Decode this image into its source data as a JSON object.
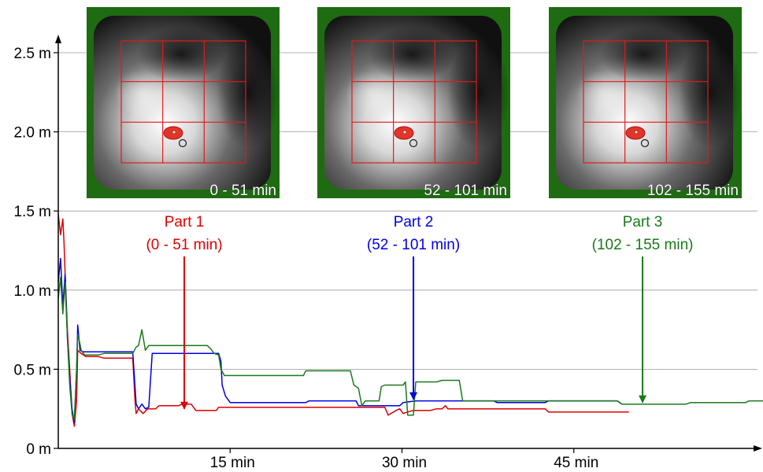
{
  "colors": {
    "part1": "#dd0000",
    "part2": "#0000e6",
    "part3": "#1a7a1a",
    "gridline": "#9a9a9a",
    "map_border": "#1e6b12",
    "map_grid": "#e01b1b"
  },
  "chart_data": {
    "type": "line",
    "x_unit": "min",
    "y_unit": "m",
    "xlim": [
      0,
      68
    ],
    "ylim": [
      0,
      2.7
    ],
    "x_ticks": [
      {
        "value": 15,
        "label": "15 min"
      },
      {
        "value": 30,
        "label": "30 min"
      },
      {
        "value": 45,
        "label": "45 min"
      }
    ],
    "y_ticks": [
      {
        "value": 0,
        "label": "0 m"
      },
      {
        "value": 0.5,
        "label": "0.5 m"
      },
      {
        "value": 1.0,
        "label": "1.0 m"
      },
      {
        "value": 1.5,
        "label": "1.5 m"
      },
      {
        "value": 2.0,
        "label": "2.0 m"
      },
      {
        "value": 2.5,
        "label": "2.5 m"
      }
    ],
    "gridlines_y": [
      0.5,
      1.0,
      1.5,
      2.0,
      2.5
    ],
    "series": [
      {
        "id": "part1",
        "color_key": "part1",
        "points": [
          [
            0,
            1.48
          ],
          [
            0.2,
            1.35
          ],
          [
            0.4,
            1.45
          ],
          [
            0.5,
            1.3
          ],
          [
            0.6,
            1.1
          ],
          [
            0.8,
            0.75
          ],
          [
            1.0,
            0.5
          ],
          [
            1.2,
            0.22
          ],
          [
            1.4,
            0.14
          ],
          [
            1.6,
            0.3
          ],
          [
            1.7,
            0.62
          ],
          [
            2.0,
            0.6
          ],
          [
            2.4,
            0.58
          ],
          [
            3.5,
            0.58
          ],
          [
            4.0,
            0.57
          ],
          [
            6.0,
            0.57
          ],
          [
            6.5,
            0.57
          ],
          [
            6.7,
            0.3
          ],
          [
            6.8,
            0.22
          ],
          [
            7.0,
            0.25
          ],
          [
            7.4,
            0.22
          ],
          [
            7.8,
            0.25
          ],
          [
            8.5,
            0.25
          ],
          [
            8.8,
            0.27
          ],
          [
            10.5,
            0.27
          ],
          [
            10.8,
            0.28
          ],
          [
            11.6,
            0.28
          ],
          [
            12.0,
            0.24
          ],
          [
            13.8,
            0.24
          ],
          [
            14.0,
            0.26
          ],
          [
            28.5,
            0.26
          ],
          [
            28.8,
            0.21
          ],
          [
            29.5,
            0.24
          ],
          [
            29.8,
            0.25
          ],
          [
            30.1,
            0.22
          ],
          [
            30.5,
            0.23
          ],
          [
            31.0,
            0.24
          ],
          [
            31.5,
            0.24
          ],
          [
            32.5,
            0.24
          ],
          [
            33.0,
            0.25
          ],
          [
            33.5,
            0.25
          ],
          [
            33.8,
            0.27
          ],
          [
            34.0,
            0.25
          ],
          [
            42.5,
            0.25
          ],
          [
            42.8,
            0.23
          ],
          [
            49.8,
            0.23
          ]
        ]
      },
      {
        "id": "part2",
        "color_key": "part2",
        "points": [
          [
            0,
            1.05
          ],
          [
            0.2,
            1.2
          ],
          [
            0.4,
            0.9
          ],
          [
            0.6,
            1.1
          ],
          [
            0.8,
            0.7
          ],
          [
            1.0,
            0.45
          ],
          [
            1.2,
            0.25
          ],
          [
            1.4,
            0.16
          ],
          [
            1.6,
            0.5
          ],
          [
            1.7,
            0.78
          ],
          [
            1.9,
            0.62
          ],
          [
            2.2,
            0.61
          ],
          [
            2.5,
            0.61
          ],
          [
            6.5,
            0.61
          ],
          [
            6.8,
            0.28
          ],
          [
            7.0,
            0.25
          ],
          [
            7.3,
            0.28
          ],
          [
            7.6,
            0.25
          ],
          [
            7.9,
            0.26
          ],
          [
            8.2,
            0.6
          ],
          [
            14.0,
            0.6
          ],
          [
            14.2,
            0.55
          ],
          [
            14.3,
            0.4
          ],
          [
            14.6,
            0.33
          ],
          [
            15.0,
            0.29
          ],
          [
            21.6,
            0.29
          ],
          [
            21.9,
            0.3
          ],
          [
            26.0,
            0.3
          ],
          [
            26.2,
            0.27
          ],
          [
            29.8,
            0.27
          ],
          [
            30.1,
            0.29
          ],
          [
            31.2,
            0.3
          ],
          [
            38.0,
            0.3
          ],
          [
            38.3,
            0.29
          ],
          [
            42.5,
            0.29
          ],
          [
            42.8,
            0.3
          ],
          [
            48.8,
            0.3
          ],
          [
            49.2,
            0.28
          ]
        ]
      },
      {
        "id": "part3",
        "color_key": "part3",
        "points": [
          [
            0,
            0.95
          ],
          [
            0.2,
            1.08
          ],
          [
            0.4,
            0.85
          ],
          [
            0.6,
            1.05
          ],
          [
            0.8,
            0.7
          ],
          [
            1.0,
            0.4
          ],
          [
            1.2,
            0.22
          ],
          [
            1.4,
            0.18
          ],
          [
            1.6,
            0.5
          ],
          [
            1.7,
            0.72
          ],
          [
            1.9,
            0.66
          ],
          [
            2.0,
            0.62
          ],
          [
            2.3,
            0.59
          ],
          [
            3.5,
            0.59
          ],
          [
            4.0,
            0.6
          ],
          [
            6.5,
            0.6
          ],
          [
            6.8,
            0.64
          ],
          [
            7.0,
            0.65
          ],
          [
            7.3,
            0.75
          ],
          [
            7.6,
            0.62
          ],
          [
            7.9,
            0.65
          ],
          [
            13.0,
            0.65
          ],
          [
            13.3,
            0.63
          ],
          [
            13.6,
            0.6
          ],
          [
            14.0,
            0.59
          ],
          [
            14.2,
            0.5
          ],
          [
            14.5,
            0.46
          ],
          [
            21.4,
            0.46
          ],
          [
            21.6,
            0.49
          ],
          [
            25.5,
            0.49
          ],
          [
            25.8,
            0.4
          ],
          [
            26.2,
            0.38
          ],
          [
            26.5,
            0.27
          ],
          [
            26.8,
            0.3
          ],
          [
            28.0,
            0.3
          ],
          [
            28.2,
            0.39
          ],
          [
            28.5,
            0.4
          ],
          [
            30.1,
            0.4
          ],
          [
            30.3,
            0.42
          ],
          [
            30.5,
            0.21
          ],
          [
            31.0,
            0.21
          ],
          [
            31.2,
            0.42
          ],
          [
            33.0,
            0.42
          ],
          [
            33.5,
            0.43
          ],
          [
            35.0,
            0.43
          ],
          [
            35.3,
            0.3
          ],
          [
            48.8,
            0.3
          ],
          [
            49.2,
            0.28
          ],
          [
            54.8,
            0.28
          ],
          [
            55.2,
            0.29
          ],
          [
            60.0,
            0.29
          ],
          [
            60.3,
            0.3
          ],
          [
            64.8,
            0.3
          ]
        ]
      }
    ],
    "annotations": [
      {
        "id": "part1",
        "color_key": "part1",
        "line1": "Part 1",
        "line2": "(0 - 51 min)",
        "arrow_x": 11.0,
        "arrow_y": 0.24
      },
      {
        "id": "part2",
        "color_key": "part2",
        "line1": "Part 2",
        "line2": "(52 - 101 min)",
        "arrow_x": 31.0,
        "arrow_y": 0.3
      },
      {
        "id": "part3",
        "color_key": "part3",
        "line1": "Part 3",
        "line2": "(102 - 155 min)",
        "arrow_x": 51.0,
        "arrow_y": 0.28
      }
    ],
    "heatmaps": [
      {
        "id": "map1",
        "label": "0 - 51 min"
      },
      {
        "id": "map2",
        "label": "52 - 101 min"
      },
      {
        "id": "map3",
        "label": "102 - 155 min"
      }
    ]
  }
}
